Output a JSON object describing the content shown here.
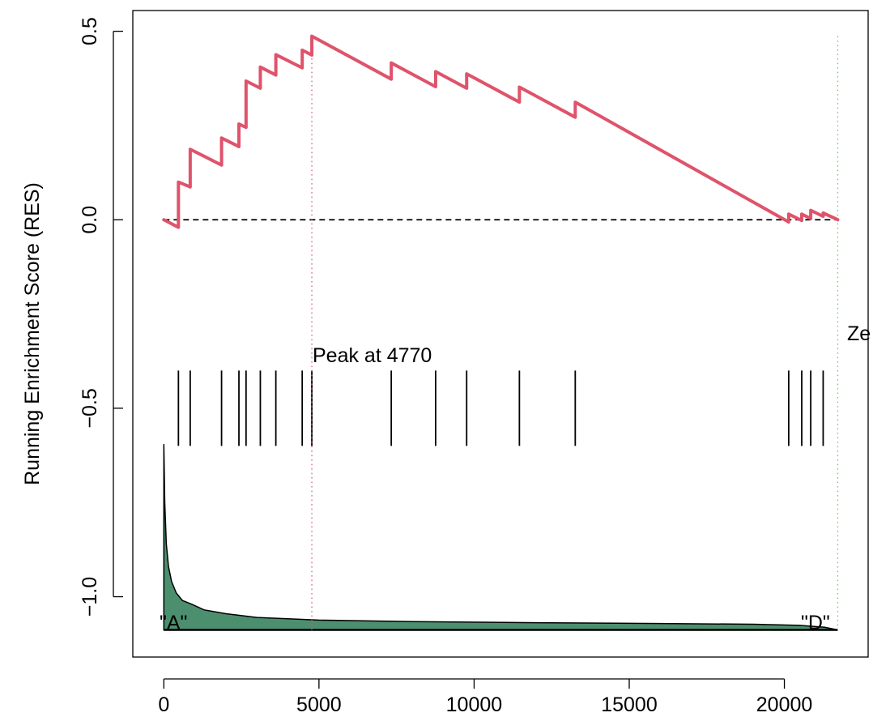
{
  "chart_data": {
    "type": "line",
    "title": "",
    "xlabel": "",
    "ylabel": "Running Enrichment Score (RES)",
    "xlim": [
      -1000,
      22700
    ],
    "ylim": [
      -1.16,
      0.555
    ],
    "x_ticks": [
      0,
      5000,
      10000,
      15000,
      20000
    ],
    "x_tick_labels": [
      "0",
      "5000",
      "10000",
      "15000",
      "20000"
    ],
    "y_ticks": [
      0.5,
      0.0,
      -0.5,
      -1.0
    ],
    "y_tick_labels": [
      "0.5",
      "0.0",
      "−0.5",
      "−1.0"
    ],
    "colors": {
      "res_line": "#DF536B",
      "peak_line": "#DF536B",
      "zero_cross_line": "#61D04F",
      "ranked_fill": "#4C8F6E",
      "baseline": "#000000"
    },
    "res_series": {
      "name": "",
      "points": [
        [
          0,
          0.0
        ],
        [
          470,
          -0.02
        ],
        [
          470,
          0.1
        ],
        [
          850,
          0.087
        ],
        [
          850,
          0.187
        ],
        [
          1860,
          0.145
        ],
        [
          1860,
          0.217
        ],
        [
          2420,
          0.194
        ],
        [
          2420,
          0.254
        ],
        [
          2650,
          0.245
        ],
        [
          2650,
          0.368
        ],
        [
          3110,
          0.349
        ],
        [
          3110,
          0.405
        ],
        [
          3610,
          0.384
        ],
        [
          3610,
          0.438
        ],
        [
          4460,
          0.403
        ],
        [
          4460,
          0.45
        ],
        [
          4770,
          0.437
        ],
        [
          4770,
          0.487
        ],
        [
          7330,
          0.373
        ],
        [
          7330,
          0.416
        ],
        [
          8760,
          0.353
        ],
        [
          8760,
          0.393
        ],
        [
          9760,
          0.349
        ],
        [
          9760,
          0.387
        ],
        [
          11460,
          0.312
        ],
        [
          11460,
          0.352
        ],
        [
          13260,
          0.272
        ],
        [
          13260,
          0.312
        ],
        [
          20140,
          -0.006
        ],
        [
          20140,
          0.015
        ],
        [
          20560,
          -0.002
        ],
        [
          20560,
          0.015
        ],
        [
          20850,
          0.003
        ],
        [
          20850,
          0.025
        ],
        [
          21250,
          0.009
        ],
        [
          21250,
          0.018
        ],
        [
          21720,
          0.0
        ]
      ]
    },
    "hit_positions": [
      470,
      850,
      1860,
      2420,
      2650,
      3110,
      3610,
      4460,
      4770,
      7330,
      8760,
      9760,
      11460,
      13260,
      20140,
      20560,
      20850,
      21250
    ],
    "hit_y_range": [
      -0.6,
      -0.4
    ],
    "ranked_metric_area": {
      "baseline": -1.088,
      "points": [
        [
          0,
          -0.595
        ],
        [
          30,
          -0.75
        ],
        [
          80,
          -0.86
        ],
        [
          150,
          -0.92
        ],
        [
          250,
          -0.96
        ],
        [
          400,
          -0.99
        ],
        [
          600,
          -1.01
        ],
        [
          900,
          -1.02
        ],
        [
          1300,
          -1.035
        ],
        [
          2000,
          -1.045
        ],
        [
          3000,
          -1.055
        ],
        [
          5000,
          -1.062
        ],
        [
          8000,
          -1.066
        ],
        [
          12000,
          -1.069
        ],
        [
          16000,
          -1.071
        ],
        [
          19000,
          -1.073
        ],
        [
          20500,
          -1.076
        ],
        [
          21300,
          -1.081
        ],
        [
          21720,
          -1.088
        ]
      ]
    },
    "peak_x": 4770,
    "zero_cross_x": 21720,
    "annotations": {
      "peak_label": "Peak at 4770",
      "zero_label": "Ze",
      "label_a": "\"A\"",
      "label_d": "\"D\""
    }
  }
}
